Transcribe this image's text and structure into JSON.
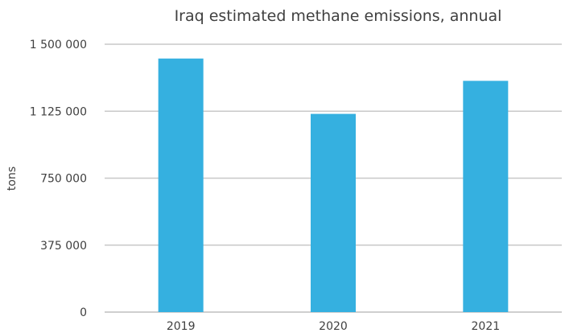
{
  "chart_data": {
    "type": "bar",
    "title": "Iraq estimated methane emissions, annual",
    "xlabel": "",
    "ylabel": "tons",
    "categories": [
      "2019",
      "2020",
      "2021"
    ],
    "values": [
      1420000,
      1110000,
      1295000
    ],
    "ylim": [
      0,
      1500000
    ],
    "yticks": [
      0,
      375000,
      750000,
      1125000,
      1500000
    ],
    "ytick_labels": [
      "0",
      "375 000",
      "750 000",
      "1 125 000",
      "1 500 000"
    ],
    "grid": true,
    "legend": "none",
    "bar_color": "#35B0E0"
  }
}
